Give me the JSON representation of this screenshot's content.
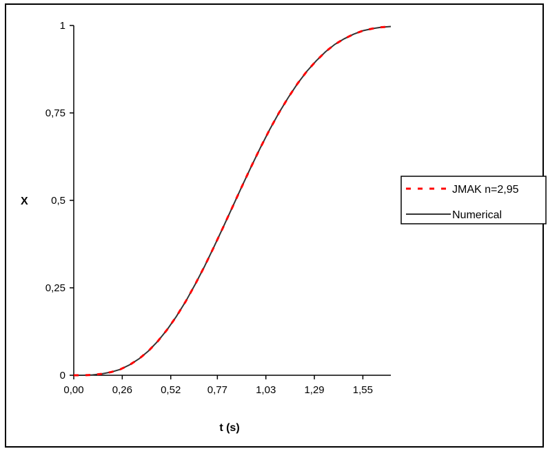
{
  "chart_data": {
    "type": "line",
    "xlabel": "t (s)",
    "ylabel": "X",
    "xlim": [
      0,
      1.7
    ],
    "ylim": [
      0,
      1
    ],
    "x_ticks": [
      0.0,
      0.26,
      0.52,
      0.77,
      1.03,
      1.29,
      1.55
    ],
    "x_tick_labels": [
      "0,00",
      "0,26",
      "0,52",
      "0,77",
      "1,03",
      "1,29",
      "1,55"
    ],
    "y_ticks": [
      0,
      0.25,
      0.5,
      0.75,
      1
    ],
    "y_tick_labels": [
      "0",
      "0,25",
      "0,5",
      "0,75",
      "1"
    ],
    "grid": false,
    "legend_position": "right",
    "series": [
      {
        "name": "JMAK n=2,95",
        "style": "dashed",
        "color": "#ff0000",
        "x": [
          0.0,
          0.05,
          0.1,
          0.15,
          0.2,
          0.25,
          0.3,
          0.35,
          0.4,
          0.45,
          0.5,
          0.55,
          0.6,
          0.65,
          0.7,
          0.75,
          0.8,
          0.85,
          0.9,
          0.95,
          1.0,
          1.05,
          1.1,
          1.15,
          1.2,
          1.25,
          1.3,
          1.35,
          1.4,
          1.45,
          1.5,
          1.55,
          1.6,
          1.65,
          1.7
        ],
        "y": [
          0,
          0,
          0.001,
          0.004,
          0.009,
          0.017,
          0.03,
          0.047,
          0.069,
          0.097,
          0.13,
          0.168,
          0.211,
          0.259,
          0.31,
          0.365,
          0.422,
          0.48,
          0.538,
          0.595,
          0.65,
          0.702,
          0.75,
          0.794,
          0.834,
          0.869,
          0.899,
          0.925,
          0.946,
          0.962,
          0.975,
          0.985,
          0.991,
          0.995,
          0.997
        ]
      },
      {
        "name": "Numerical",
        "style": "solid",
        "color": "#333333",
        "x": [
          0.0,
          0.05,
          0.1,
          0.15,
          0.2,
          0.25,
          0.3,
          0.35,
          0.4,
          0.45,
          0.5,
          0.55,
          0.6,
          0.65,
          0.7,
          0.75,
          0.8,
          0.85,
          0.9,
          0.95,
          1.0,
          1.05,
          1.1,
          1.15,
          1.2,
          1.25,
          1.3,
          1.35,
          1.4,
          1.45,
          1.5,
          1.55,
          1.6,
          1.65,
          1.7
        ],
        "y": [
          0,
          0,
          0.001,
          0.004,
          0.009,
          0.017,
          0.03,
          0.047,
          0.069,
          0.097,
          0.13,
          0.168,
          0.211,
          0.259,
          0.31,
          0.365,
          0.422,
          0.48,
          0.538,
          0.595,
          0.65,
          0.702,
          0.75,
          0.794,
          0.834,
          0.869,
          0.899,
          0.925,
          0.946,
          0.962,
          0.975,
          0.985,
          0.991,
          0.995,
          0.997
        ]
      }
    ]
  }
}
